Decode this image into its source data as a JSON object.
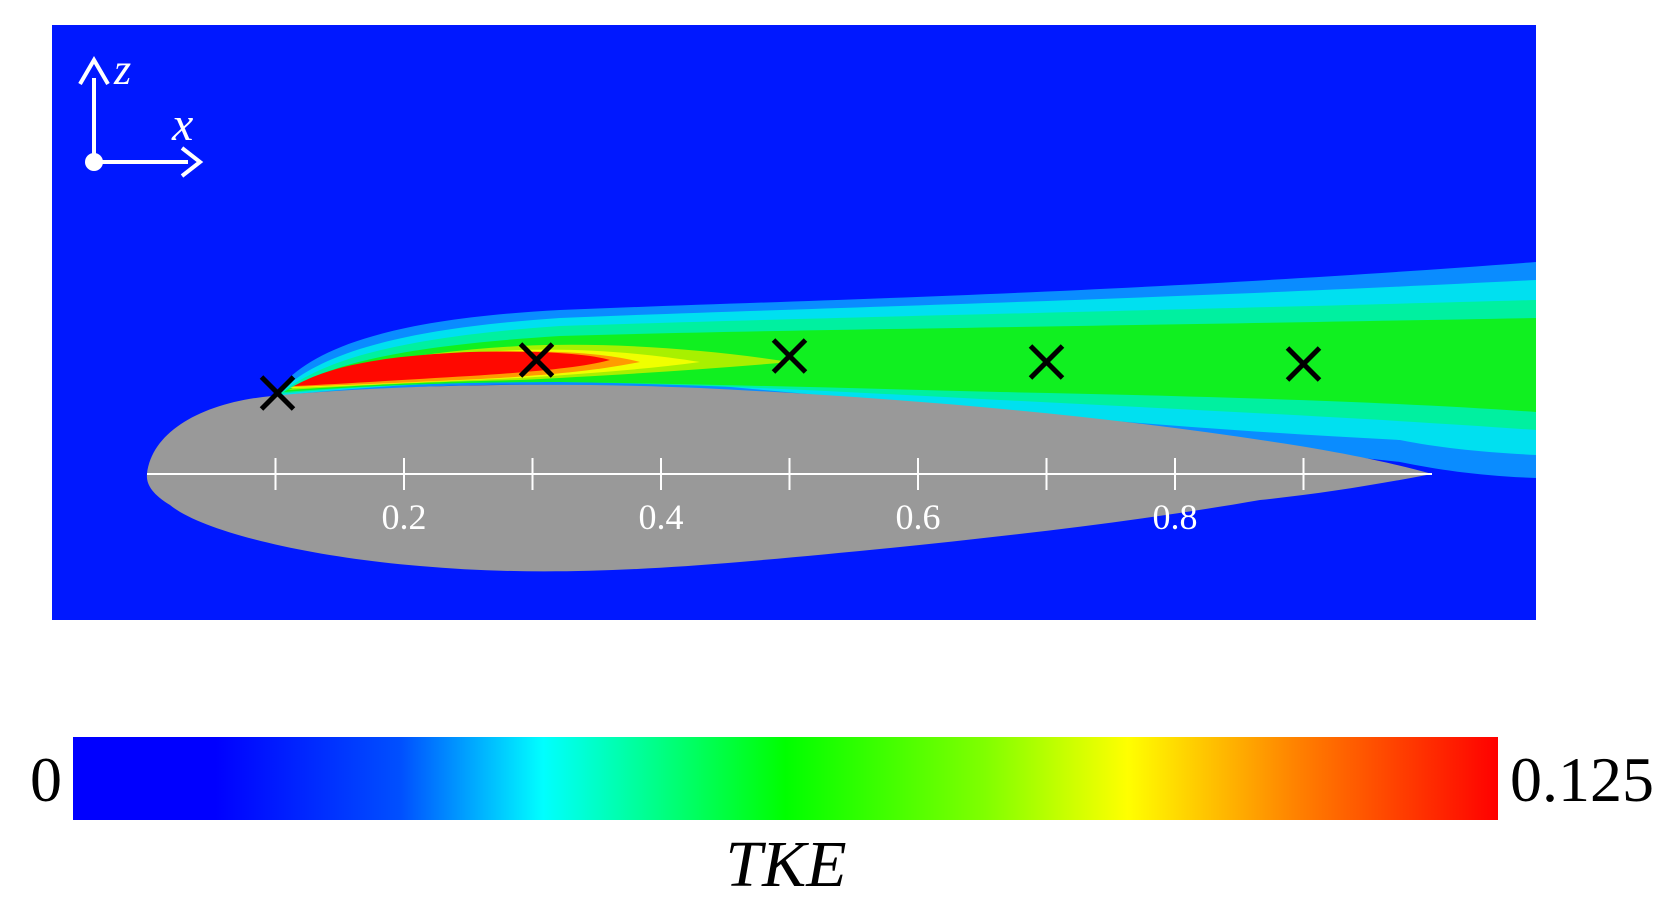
{
  "chart_data": {
    "type": "heatmap",
    "title": "",
    "axes": {
      "z_label": "z",
      "x_label": "x"
    },
    "chord_axis": {
      "range": [
        0,
        1
      ],
      "ticks": [
        0.1,
        0.2,
        0.3,
        0.4,
        0.5,
        0.6,
        0.7,
        0.8,
        0.9
      ],
      "tick_labels": [
        {
          "value": 0.2,
          "label": "0.2"
        },
        {
          "value": 0.4,
          "label": "0.4"
        },
        {
          "value": 0.6,
          "label": "0.6"
        },
        {
          "value": 0.8,
          "label": "0.8"
        }
      ]
    },
    "probe_markers": [
      {
        "x": 0.1,
        "symbol": "×"
      },
      {
        "x": 0.3,
        "symbol": "×"
      },
      {
        "x": 0.5,
        "symbol": "×"
      },
      {
        "x": 0.7,
        "symbol": "×"
      },
      {
        "x": 0.9,
        "symbol": "×"
      }
    ],
    "colorbar": {
      "variable": "TKE",
      "min_label": "0",
      "max_label": "0.125",
      "min": 0,
      "max": 0.125,
      "stops": [
        {
          "value": 0.0,
          "color": "#0000ff"
        },
        {
          "value": 0.0125,
          "color": "#0000ff"
        },
        {
          "value": 0.02875,
          "color": "#0050ff"
        },
        {
          "value": 0.04125,
          "color": "#00ffff"
        },
        {
          "value": 0.0625,
          "color": "#00ff00"
        },
        {
          "value": 0.08,
          "color": "#80ff00"
        },
        {
          "value": 0.0925,
          "color": "#ffff00"
        },
        {
          "value": 0.1075,
          "color": "#ff8000"
        },
        {
          "value": 0.125,
          "color": "#ff0000"
        }
      ]
    },
    "colors": {
      "background_field": "#0018ff",
      "airfoil": "#999999",
      "axis_lines": "#ffffff",
      "markers": "#000000"
    }
  }
}
